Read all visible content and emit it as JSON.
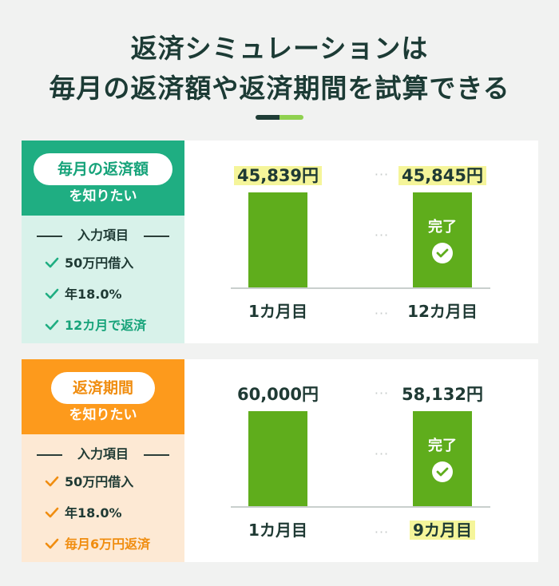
{
  "title": {
    "line1": "返済シミュレーションは",
    "line2": "毎月の返済額や返済期間を試算できる"
  },
  "colors": {
    "green_accent": "#1fae82",
    "orange_accent": "#fd9a1c",
    "bar": "#5fad1c",
    "highlight": "#f5f59a",
    "dark": "#1f3d36"
  },
  "sections": [
    {
      "pill": "毎月の返済額",
      "subtitle": "を知りたい",
      "input_label": "入力項目",
      "items": [
        "50万円借入",
        "年18.0%",
        "12カ月で返済"
      ],
      "amount_first": "45,839円",
      "amount_last": "45,845円",
      "done_label": "完了",
      "month_first": "1カ月目",
      "month_last": "12カ月目",
      "dots": "···"
    },
    {
      "pill": "返済期間",
      "subtitle": "を知りたい",
      "input_label": "入力項目",
      "items": [
        "50万円借入",
        "年18.0%",
        "毎月6万円返済"
      ],
      "amount_first": "60,000円",
      "amount_last": "58,132円",
      "done_label": "完了",
      "month_first": "1カ月目",
      "month_last": "9カ月目",
      "dots": "···"
    }
  ]
}
